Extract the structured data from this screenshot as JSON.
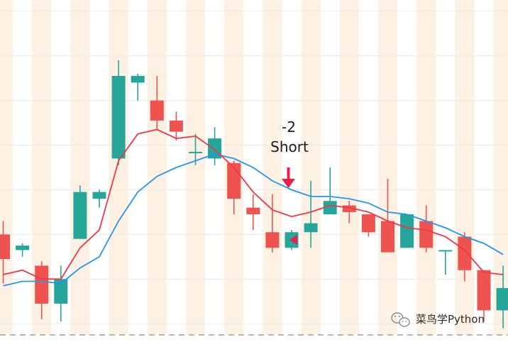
{
  "chart_data": {
    "type": "candlestick",
    "price_range": [
      96.5,
      111.5
    ],
    "colors": {
      "up": "#26a69a",
      "down": "#ef5350",
      "ma_fast": "#f23645",
      "ma_slow": "#2196f3",
      "band": "#fdf1e3",
      "grid": "#eaeaea",
      "signal_arrow": "#e91e4a",
      "baseline": "#9e9e9e"
    },
    "candles": [
      {
        "o": 101.0,
        "h": 101.6,
        "l": 98.8,
        "c": 99.9
      },
      {
        "o": 100.3,
        "h": 100.6,
        "l": 100.0,
        "c": 100.5
      },
      {
        "o": 99.6,
        "h": 99.8,
        "l": 97.2,
        "c": 97.9
      },
      {
        "o": 97.9,
        "h": 99.6,
        "l": 97.1,
        "c": 99.0
      },
      {
        "o": 100.8,
        "h": 103.2,
        "l": 100.8,
        "c": 102.9
      },
      {
        "o": 102.6,
        "h": 103.0,
        "l": 102.2,
        "c": 102.9
      },
      {
        "o": 104.4,
        "h": 108.8,
        "l": 104.1,
        "c": 108.1
      },
      {
        "o": 107.8,
        "h": 108.2,
        "l": 107.0,
        "c": 108.1
      },
      {
        "o": 107.0,
        "h": 108.1,
        "l": 105.7,
        "c": 106.1
      },
      {
        "o": 106.1,
        "h": 106.5,
        "l": 105.2,
        "c": 105.6
      },
      {
        "o": 104.7,
        "h": 105.5,
        "l": 104.1,
        "c": 104.7
      },
      {
        "o": 104.4,
        "h": 105.8,
        "l": 104.1,
        "c": 105.3
      },
      {
        "o": 104.2,
        "h": 104.3,
        "l": 101.9,
        "c": 102.6
      },
      {
        "o": 102.2,
        "h": 102.8,
        "l": 101.2,
        "c": 101.9
      },
      {
        "o": 101.1,
        "h": 102.8,
        "l": 100.2,
        "c": 100.4
      },
      {
        "o": 100.4,
        "h": 101.2,
        "l": 100.3,
        "c": 101.1
      },
      {
        "o": 101.1,
        "h": 103.4,
        "l": 100.4,
        "c": 101.5
      },
      {
        "o": 101.9,
        "h": 104.0,
        "l": 101.9,
        "c": 102.5
      },
      {
        "o": 102.3,
        "h": 102.5,
        "l": 101.5,
        "c": 102.0
      },
      {
        "o": 101.9,
        "h": 101.9,
        "l": 100.9,
        "c": 101.1
      },
      {
        "o": 101.6,
        "h": 103.5,
        "l": 100.2,
        "c": 100.2
      },
      {
        "o": 100.4,
        "h": 101.9,
        "l": 100.4,
        "c": 101.9
      },
      {
        "o": 101.6,
        "h": 102.3,
        "l": 100.2,
        "c": 100.4
      },
      {
        "o": 100.3,
        "h": 100.3,
        "l": 99.2,
        "c": 100.3
      },
      {
        "o": 100.9,
        "h": 101.1,
        "l": 98.9,
        "c": 99.4
      },
      {
        "o": 99.4,
        "h": 99.4,
        "l": 97.1,
        "c": 97.6
      },
      {
        "o": 97.6,
        "h": 99.6,
        "l": 96.8,
        "c": 98.6
      }
    ],
    "ma_fast": [
      99.2,
      99.4,
      99.0,
      99.0,
      100.4,
      101.2,
      104.3,
      105.5,
      105.7,
      105.3,
      105.4,
      104.8,
      104.0,
      102.9,
      102.1,
      101.8,
      102.0,
      102.3,
      102.2,
      102.0,
      101.6,
      101.3,
      101.2,
      100.9,
      100.3,
      99.3,
      99.2
    ],
    "ma_slow": [
      98.7,
      98.9,
      98.9,
      98.8,
      99.5,
      100.0,
      101.6,
      102.9,
      103.6,
      104.0,
      104.3,
      104.6,
      104.4,
      104.0,
      103.4,
      103.0,
      102.7,
      102.7,
      102.6,
      102.4,
      102.0,
      101.9,
      101.6,
      101.3,
      100.9,
      100.6,
      100.1
    ],
    "signal": {
      "count_label": "-2",
      "label": "Short",
      "candle_index": 15
    }
  },
  "watermark": {
    "icon": "wechat-icon",
    "text": "菜鸟学Python"
  }
}
